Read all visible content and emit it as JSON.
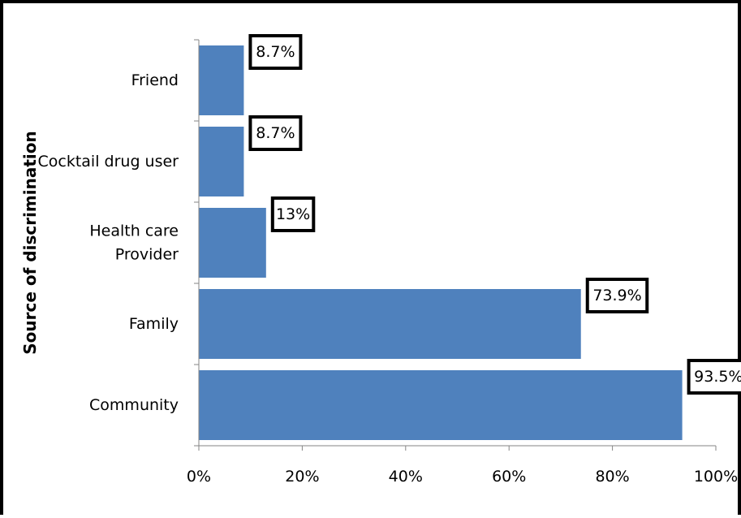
{
  "chart_data": {
    "type": "bar",
    "orientation": "horizontal",
    "title": "",
    "xlabel": "",
    "ylabel": "Source of discrimination",
    "categories": [
      "Community",
      "Family",
      "Health care Provider",
      "Cocktail drug user",
      "Friend"
    ],
    "category_lines": [
      [
        "Community"
      ],
      [
        "Family"
      ],
      [
        "Health care",
        "Provider"
      ],
      [
        "Cocktail drug user"
      ],
      [
        "Friend"
      ]
    ],
    "values": [
      93.5,
      73.9,
      13,
      8.7,
      8.7
    ],
    "data_labels": [
      "93.5%",
      "73.9%",
      "13%",
      "8.7%",
      "8.7%"
    ],
    "xlim": [
      0,
      100
    ],
    "x_ticks": [
      0,
      20,
      40,
      60,
      80,
      100
    ],
    "x_tick_labels": [
      "0%",
      "20%",
      "40%",
      "60%",
      "80%",
      "100%"
    ],
    "bar_color": "#4f81bd",
    "grid": false,
    "legend": "none"
  }
}
